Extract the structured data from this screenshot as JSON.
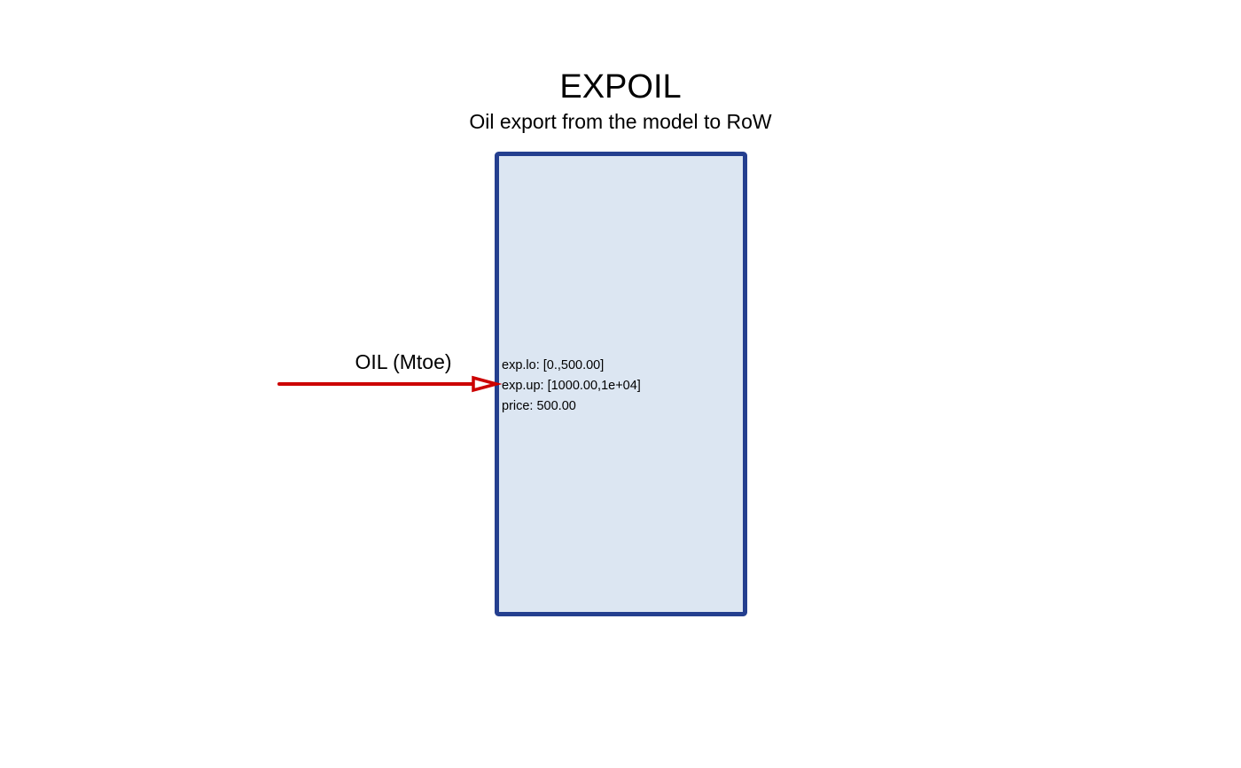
{
  "diagram": {
    "title": "EXPOIL",
    "subtitle": "Oil export from the model to RoW",
    "process_box": {
      "fill": "#dce6f2",
      "border": "#243f8f"
    },
    "input_flow": {
      "label": "OIL (Mtoe)",
      "color": "#cc0000"
    },
    "parameters": [
      "exp.lo: [0.,500.00]",
      "exp.up: [1000.00,1e+04]",
      "price: 500.00"
    ]
  }
}
